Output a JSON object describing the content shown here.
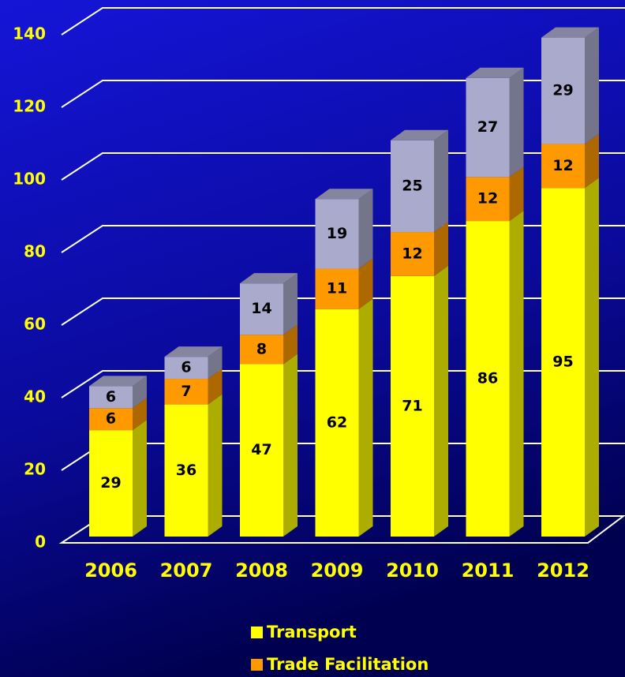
{
  "chart_data": {
    "type": "bar3d_stacked",
    "categories": [
      "2006",
      "2007",
      "2008",
      "2009",
      "2010",
      "2011",
      "2012"
    ],
    "series": [
      {
        "name": "Transport",
        "color": "#ffff00",
        "values": [
          29,
          36,
          47,
          62,
          71,
          86,
          95
        ]
      },
      {
        "name": "Trade Facilitation",
        "color": "#ff9900",
        "values": [
          6,
          7,
          8,
          11,
          12,
          12,
          12
        ]
      },
      {
        "color": "#aaaacc",
        "values": [
          6,
          6,
          14,
          19,
          25,
          27,
          29
        ]
      }
    ],
    "ylim": [
      0,
      140
    ],
    "yticks": [
      0,
      20,
      40,
      60,
      80,
      100,
      120,
      140
    ],
    "grid": true
  }
}
